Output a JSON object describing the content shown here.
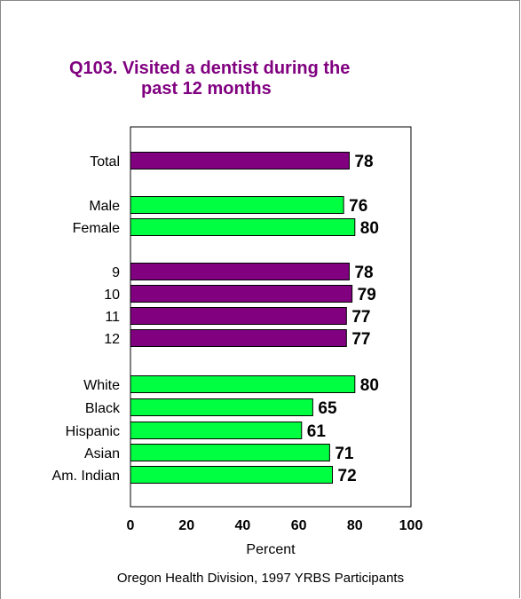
{
  "chart_data": {
    "type": "bar",
    "orientation": "horizontal",
    "title_line1": "Q103.  Visited a dentist during the",
    "title_line2": "past 12 months",
    "xlabel": "Percent",
    "xlim": [
      0,
      100
    ],
    "xticks": [
      0,
      20,
      40,
      60,
      80,
      100
    ],
    "categories": [
      "Total",
      "Male",
      "Female",
      "9",
      "10",
      "11",
      "12",
      "White",
      "Black",
      "Hispanic",
      "Asian",
      "Am. Indian"
    ],
    "values": [
      78,
      76,
      80,
      78,
      79,
      77,
      77,
      80,
      65,
      61,
      71,
      72
    ],
    "groups": [
      "total",
      "sex",
      "sex",
      "grade",
      "grade",
      "grade",
      "grade",
      "race",
      "race",
      "race",
      "race",
      "race"
    ],
    "colors": {
      "purple": "#800080",
      "green": "#00ff40"
    },
    "bar_colors": [
      "purple",
      "green",
      "green",
      "purple",
      "purple",
      "purple",
      "purple",
      "green",
      "green",
      "green",
      "green",
      "green"
    ],
    "grid": false,
    "legend": "none"
  },
  "source": "Oregon Health Division, 1997 YRBS Participants"
}
